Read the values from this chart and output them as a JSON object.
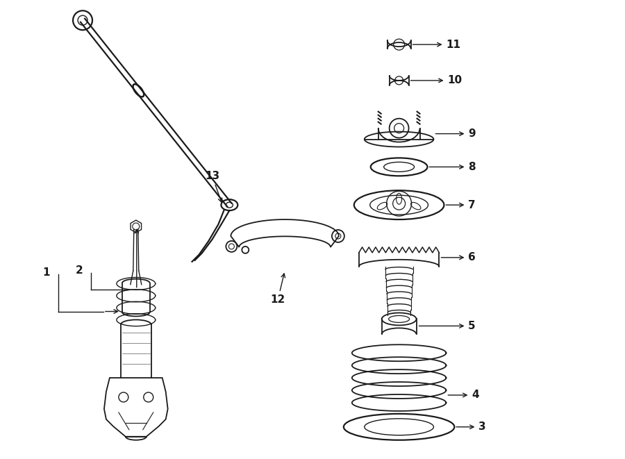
{
  "bg_color": "#ffffff",
  "line_color": "#1a1a1a",
  "fig_width": 9.0,
  "fig_height": 6.61,
  "dpi": 100,
  "label_fs": 11,
  "lw_main": 1.3
}
